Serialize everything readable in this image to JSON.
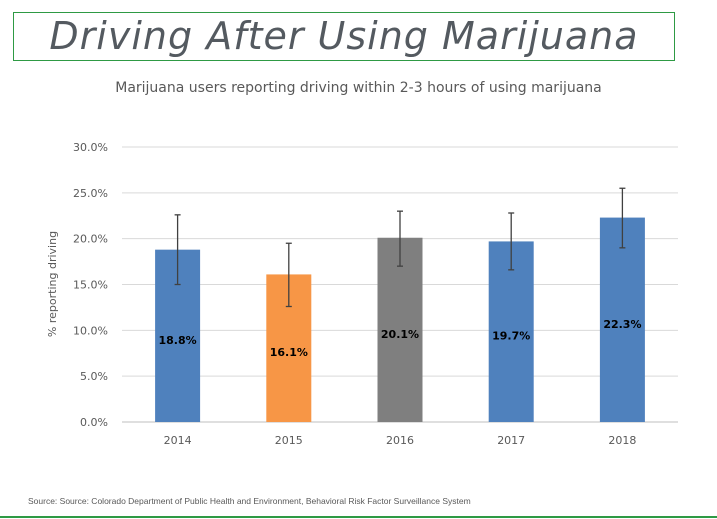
{
  "header": {
    "title": "Driving After Using Marijuana"
  },
  "footer": {
    "source": "Source: Source: Colorado Department of Public Health and Environment, Behavioral Risk Factor Surveillance System"
  },
  "chart_data": {
    "type": "bar",
    "title": "Marijuana users reporting driving within 2-3 hours of using marijuana",
    "xlabel": "",
    "ylabel": "% reporting driving",
    "ylim": [
      0,
      30
    ],
    "yticks": [
      "0.0%",
      "5.0%",
      "10.0%",
      "15.0%",
      "20.0%",
      "25.0%",
      "30.0%"
    ],
    "grid": true,
    "categories": [
      "2014",
      "2015",
      "2016",
      "2017",
      "2018"
    ],
    "values": [
      18.8,
      16.1,
      20.1,
      19.7,
      22.3
    ],
    "data_labels": [
      "18.8%",
      "16.1%",
      "20.1%",
      "19.7%",
      "22.3%"
    ],
    "error_low": [
      15.0,
      12.6,
      17.0,
      16.6,
      19.0
    ],
    "error_high": [
      22.6,
      19.5,
      23.0,
      22.8,
      25.5
    ],
    "colors": [
      "#4f81bd",
      "#f79646",
      "#7f7f7f",
      "#4f81bd",
      "#4f81bd"
    ]
  }
}
